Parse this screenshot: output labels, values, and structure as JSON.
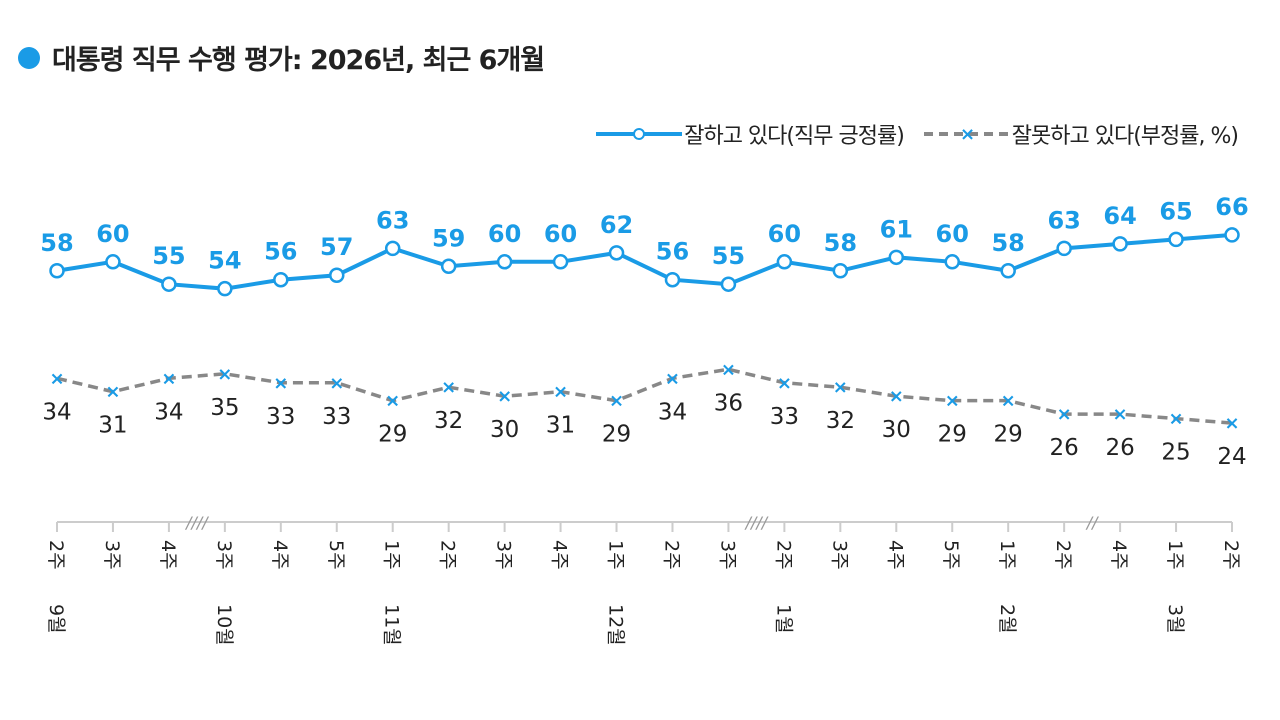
{
  "title": "대통령 직무 수행 평가: 2026년, 최근 6개월",
  "colors": {
    "positive": "#1a9be6",
    "negative": "#888888",
    "marker_negative": "#1a9be6"
  },
  "chart_data": {
    "type": "line",
    "title": "대통령 직무 수행 평가: 2026년, 최근 6개월",
    "legend_position": "top-right",
    "grid": false,
    "ylim": [
      20,
      70
    ],
    "x": [
      "9월 2주",
      "3주",
      "4주",
      "10월 3주",
      "4주",
      "5주",
      "11월 1주",
      "2주",
      "3주",
      "4주",
      "12월 1주",
      "2주",
      "3주",
      "1월 2주",
      "3주",
      "4주",
      "5주",
      "2월 1주",
      "2주",
      "4주",
      "3월 1주",
      "2주"
    ],
    "axis_breaks_after": [
      {
        "index": 2,
        "mark": "////"
      },
      {
        "index": 12,
        "mark": "////"
      },
      {
        "index": 18,
        "mark": "//"
      }
    ],
    "series": [
      {
        "name": "잘하고 있다(직무 긍정률)",
        "style": "solid",
        "marker": "circle",
        "values": [
          58,
          60,
          55,
          54,
          56,
          57,
          63,
          59,
          60,
          60,
          62,
          56,
          55,
          60,
          58,
          61,
          60,
          58,
          63,
          64,
          65,
          66
        ]
      },
      {
        "name": "잘못하고 있다(부정률, %)",
        "style": "dashed",
        "marker": "x",
        "values": [
          34,
          31,
          34,
          35,
          33,
          33,
          29,
          32,
          30,
          31,
          29,
          34,
          36,
          33,
          32,
          30,
          29,
          29,
          26,
          26,
          25,
          24
        ]
      }
    ]
  }
}
